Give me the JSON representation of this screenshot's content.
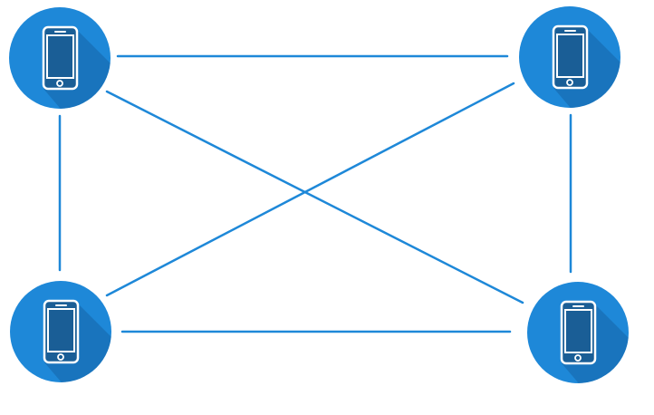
{
  "diagram": {
    "type": "full-mesh-network",
    "nodes": [
      {
        "id": "top-left",
        "icon": "smartphone-icon"
      },
      {
        "id": "top-right",
        "icon": "smartphone-icon"
      },
      {
        "id": "bottom-left",
        "icon": "smartphone-icon"
      },
      {
        "id": "bottom-right",
        "icon": "smartphone-icon"
      }
    ],
    "links": [
      {
        "from": "top-left",
        "to": "top-right"
      },
      {
        "from": "bottom-left",
        "to": "bottom-right"
      },
      {
        "from": "top-left",
        "to": "bottom-left"
      },
      {
        "from": "top-right",
        "to": "bottom-right"
      },
      {
        "from": "top-left",
        "to": "bottom-right"
      },
      {
        "from": "top-right",
        "to": "bottom-left"
      }
    ]
  },
  "colors": {
    "background": "#ffffff",
    "node_fill": "#1e88d8",
    "node_shadow": "#1565a8",
    "phone_screen": "#1a5e96",
    "phone_outline": "#ffffff",
    "link": "#1e88d8"
  }
}
